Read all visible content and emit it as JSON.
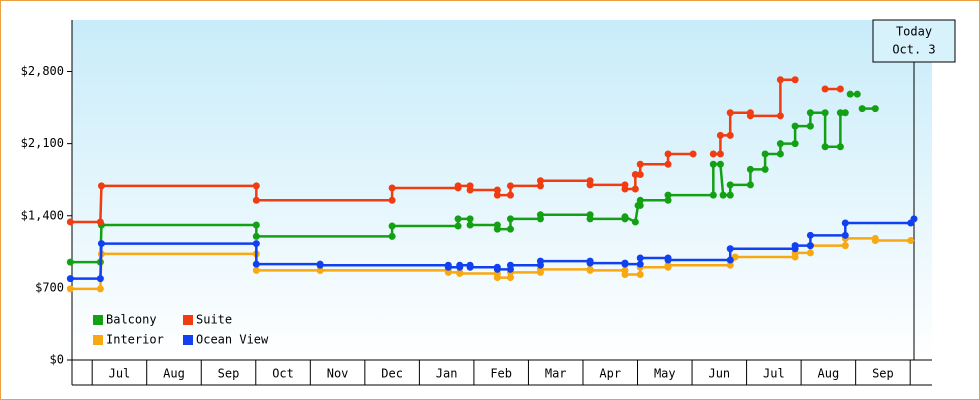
{
  "chart_data": {
    "type": "step-line",
    "categories": [
      "Jul",
      "Aug",
      "Sep",
      "Oct",
      "Nov",
      "Dec",
      "Jan",
      "Feb",
      "Mar",
      "Apr",
      "May",
      "Jun",
      "Jul",
      "Aug",
      "Sep"
    ],
    "xlim": [
      -0.37,
      15.4
    ],
    "ylim": [
      0,
      3300
    ],
    "yticks": [
      {
        "value": 0,
        "label": "$0"
      },
      {
        "value": 700,
        "label": "$700"
      },
      {
        "value": 1400,
        "label": "$1,400"
      },
      {
        "value": 2100,
        "label": "$2,100"
      },
      {
        "value": 2800,
        "label": "$2,800"
      }
    ],
    "annotation": {
      "x": 15.07,
      "lines": [
        "Today",
        "Oct. 3"
      ]
    },
    "series": [
      {
        "name": "Balcony",
        "color": "#13a013",
        "x": [
          -0.4,
          0.15,
          0.17,
          3.01,
          3.01,
          5.5,
          5.5,
          6.71,
          6.71,
          6.93,
          6.93,
          7.43,
          7.43,
          7.67,
          7.67,
          8.22,
          8.22,
          9.13,
          9.13,
          9.77,
          9.77,
          9.96,
          10.01,
          10.05,
          10.05,
          10.56,
          10.56,
          11.39,
          11.39,
          11.52,
          11.57,
          11.7,
          11.7,
          12.07,
          12.07,
          12.34,
          12.34,
          12.62,
          12.62,
          12.89,
          12.89,
          13.17,
          13.17,
          13.44,
          13.44,
          13.72,
          13.72,
          13.81,
          null,
          13.9,
          14.03,
          null,
          14.12,
          14.36
        ],
        "values": [
          950,
          950,
          1310,
          1310,
          1200,
          1200,
          1300,
          1300,
          1370,
          1370,
          1310,
          1310,
          1270,
          1270,
          1370,
          1370,
          1410,
          1410,
          1370,
          1370,
          1390,
          1340,
          1500,
          1500,
          1550,
          1550,
          1600,
          1600,
          1900,
          1900,
          1600,
          1600,
          1700,
          1700,
          1850,
          1850,
          2000,
          2000,
          2100,
          2100,
          2270,
          2270,
          2400,
          2400,
          2070,
          2070,
          2400,
          2400,
          null,
          2580,
          2580,
          null,
          2440,
          2440
        ]
      },
      {
        "name": "Suite",
        "color": "#f03c10",
        "x": [
          -0.4,
          0.15,
          0.17,
          3.01,
          3.01,
          5.5,
          5.5,
          6.71,
          6.71,
          6.93,
          6.93,
          7.43,
          7.43,
          7.67,
          7.67,
          8.22,
          8.22,
          9.13,
          9.13,
          9.77,
          9.77,
          9.96,
          9.96,
          10.05,
          10.05,
          10.56,
          10.56,
          11.02,
          null,
          11.39,
          11.52,
          11.52,
          11.7,
          11.7,
          12.07,
          12.07,
          12.62,
          12.62,
          12.89,
          null,
          13.44,
          13.72
        ],
        "values": [
          1340,
          1340,
          1690,
          1690,
          1550,
          1550,
          1670,
          1670,
          1690,
          1690,
          1650,
          1650,
          1600,
          1600,
          1690,
          1690,
          1740,
          1740,
          1700,
          1700,
          1660,
          1660,
          1800,
          1800,
          1900,
          1900,
          2000,
          2000,
          null,
          2000,
          2000,
          2180,
          2180,
          2400,
          2400,
          2370,
          2370,
          2720,
          2720,
          null,
          2630,
          2630
        ]
      },
      {
        "name": "Interior",
        "color": "#f8a810",
        "x": [
          -0.4,
          0.15,
          0.17,
          3.01,
          3.01,
          4.18,
          4.18,
          6.53,
          6.53,
          6.74,
          6.74,
          7.43,
          7.43,
          7.67,
          7.67,
          8.22,
          8.22,
          9.13,
          9.13,
          9.77,
          9.77,
          10.05,
          10.05,
          10.56,
          10.56,
          11.7,
          11.79,
          12.89,
          12.89,
          13.17,
          13.17,
          13.81,
          13.81,
          14.36,
          14.36,
          15.01
        ],
        "values": [
          690,
          690,
          1030,
          1030,
          870,
          870,
          870,
          870,
          850,
          850,
          840,
          840,
          800,
          800,
          850,
          850,
          880,
          880,
          870,
          870,
          830,
          830,
          900,
          900,
          920,
          920,
          1000,
          1000,
          1040,
          1040,
          1110,
          1110,
          1180,
          1180,
          1160,
          1160
        ]
      },
      {
        "name": "Ocean View",
        "color": "#1040f0",
        "x": [
          -0.4,
          0.15,
          0.17,
          3.01,
          3.01,
          4.18,
          4.18,
          6.53,
          6.53,
          6.74,
          6.74,
          6.93,
          6.93,
          7.43,
          7.43,
          7.67,
          7.67,
          8.22,
          8.22,
          9.13,
          9.13,
          9.77,
          9.77,
          10.05,
          10.05,
          10.56,
          10.56,
          11.7,
          11.7,
          12.89,
          12.89,
          13.17,
          13.17,
          13.81,
          13.81,
          15.01,
          15.07
        ],
        "values": [
          790,
          790,
          1130,
          1130,
          930,
          930,
          920,
          920,
          900,
          900,
          920,
          920,
          900,
          900,
          880,
          880,
          920,
          920,
          960,
          960,
          940,
          940,
          930,
          930,
          990,
          990,
          970,
          970,
          1080,
          1080,
          1110,
          1110,
          1210,
          1210,
          1330,
          1330,
          1370
        ]
      }
    ]
  }
}
